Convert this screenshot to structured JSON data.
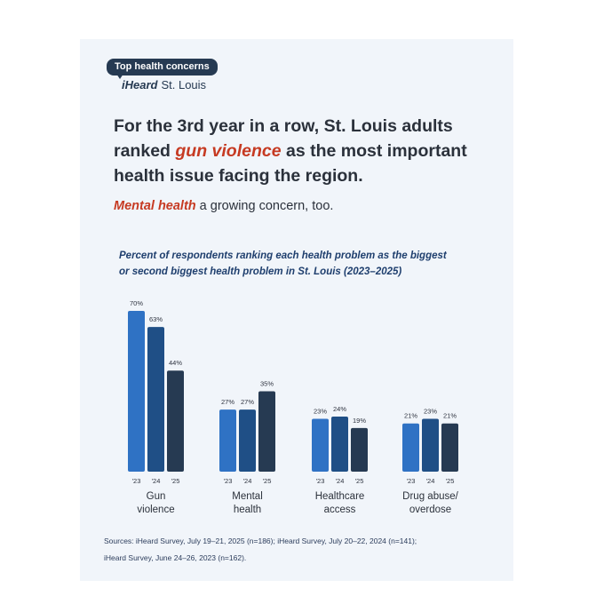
{
  "header": {
    "pill_label": "Top health concerns",
    "brand_name": "iHeard",
    "brand_city": "St. Louis"
  },
  "headline": {
    "part1": "For the 3rd year in a row, St. Louis adults ranked ",
    "highlight": "gun violence",
    "part2": " as the most important health issue facing the region."
  },
  "subhead": {
    "highlight": "Mental health",
    "rest": " a growing concern, too."
  },
  "colors": {
    "y2023": "#2f72c4",
    "y2024": "#1f4f86",
    "y2025": "#263a52",
    "accent": "#c63a22",
    "card_bg": "#f1f5fa"
  },
  "chart_data": {
    "type": "bar",
    "title_lines": [
      "Percent of respondents ranking each health problem as the biggest",
      "or second biggest health problem in St. Louis (2023–2025)"
    ],
    "categories": [
      "Gun violence",
      "Mental health",
      "Healthcare access",
      "Drug abuse/ overdose"
    ],
    "category_label_lines": [
      [
        "Gun",
        "violence"
      ],
      [
        "Mental",
        "health"
      ],
      [
        "Healthcare",
        "access"
      ],
      [
        "Drug abuse/",
        "overdose"
      ]
    ],
    "series": [
      {
        "name": "'23",
        "values": [
          70,
          27,
          23,
          21
        ],
        "labels": [
          "70%",
          "27%",
          "23%",
          "21%"
        ]
      },
      {
        "name": "'24",
        "values": [
          63,
          27,
          24,
          23
        ],
        "labels": [
          "63%",
          "27%",
          "24%",
          "23%"
        ]
      },
      {
        "name": "'25",
        "values": [
          44,
          35,
          19,
          21
        ],
        "labels": [
          "44%",
          "35%",
          "19%",
          "21%"
        ]
      }
    ],
    "ylim": [
      0,
      70
    ]
  },
  "sources": {
    "line1": "Sources: iHeard Survey, July 19–21, 2025 (n=186); iHeard Survey, July 20–22, 2024 (n=141);",
    "line2": "iHeard Survey, June 24–26, 2023 (n=162)."
  }
}
